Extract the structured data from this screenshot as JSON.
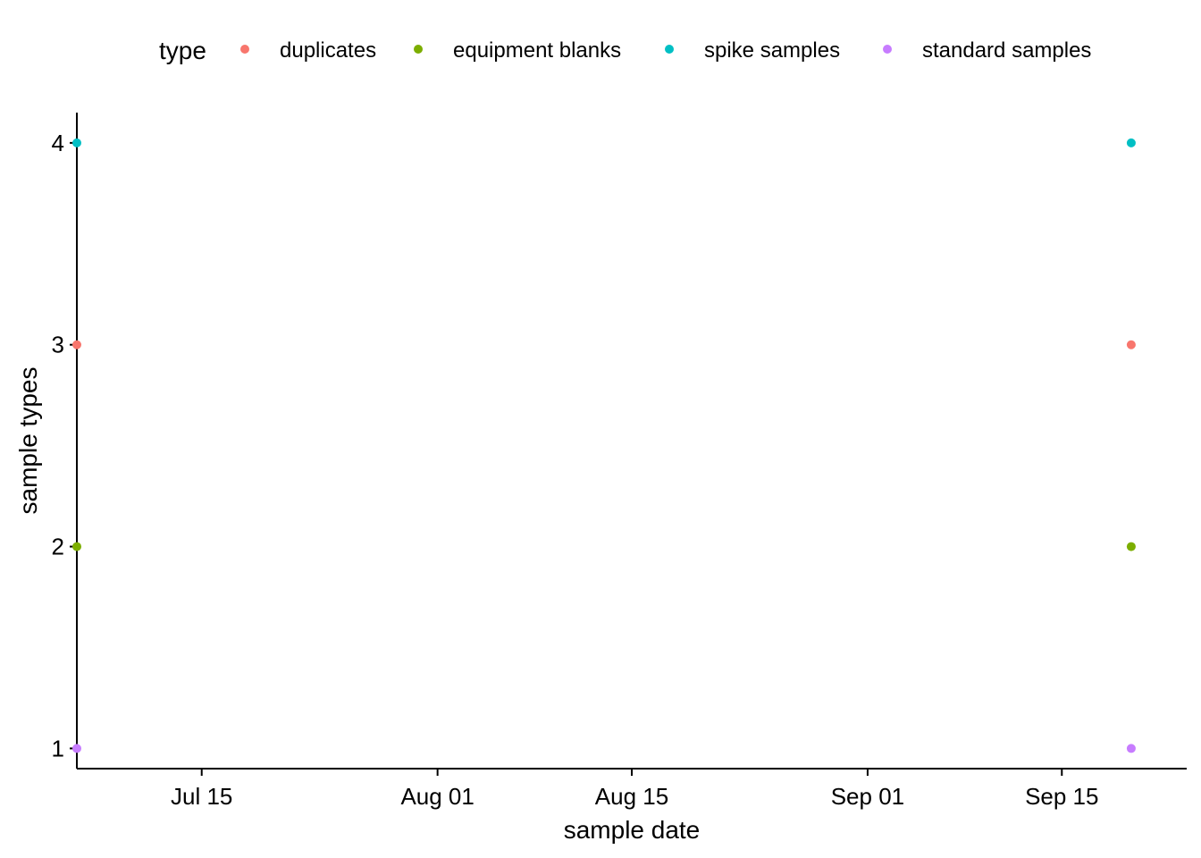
{
  "chart_data": {
    "type": "scatter",
    "xlabel": "sample date",
    "ylabel": "sample types",
    "x_scale": "date",
    "xlim": [
      "2021-07-06",
      "2021-09-24"
    ],
    "ylim": [
      0.9,
      4.15
    ],
    "x_ticks": [
      {
        "date": "2021-07-15",
        "label": "Jul 15"
      },
      {
        "date": "2021-08-01",
        "label": "Aug 01"
      },
      {
        "date": "2021-08-15",
        "label": "Aug 15"
      },
      {
        "date": "2021-09-01",
        "label": "Sep 01"
      },
      {
        "date": "2021-09-15",
        "label": "Sep 15"
      }
    ],
    "y_ticks": [
      {
        "value": 1,
        "label": "1"
      },
      {
        "value": 2,
        "label": "2"
      },
      {
        "value": 3,
        "label": "3"
      },
      {
        "value": 4,
        "label": "4"
      }
    ],
    "legend": {
      "title": "type",
      "position": "top"
    },
    "series": [
      {
        "name": "duplicates",
        "color": "#F8766D",
        "points": [
          {
            "x": "2021-07-06",
            "y": 3
          },
          {
            "x": "2021-09-20",
            "y": 3
          }
        ]
      },
      {
        "name": "equipment blanks",
        "color": "#7CAE00",
        "points": [
          {
            "x": "2021-07-06",
            "y": 2
          },
          {
            "x": "2021-09-20",
            "y": 2
          }
        ]
      },
      {
        "name": "spike samples",
        "color": "#00BFC4",
        "points": [
          {
            "x": "2021-07-06",
            "y": 4
          },
          {
            "x": "2021-09-20",
            "y": 4
          }
        ]
      },
      {
        "name": "standard samples",
        "color": "#C77CFF",
        "points": [
          {
            "x": "2021-07-06",
            "y": 1
          },
          {
            "x": "2021-09-20",
            "y": 1
          }
        ]
      }
    ],
    "grid": false
  }
}
